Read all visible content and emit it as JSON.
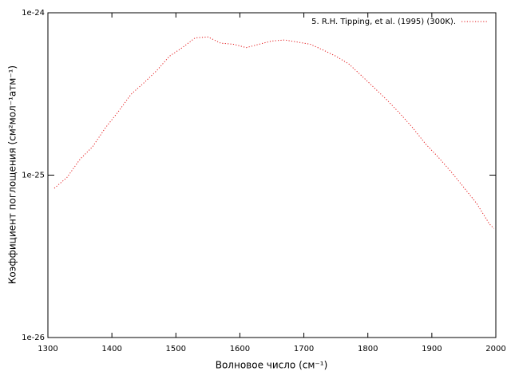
{
  "chart_data": {
    "type": "line",
    "xlabel": "Волновое число (см⁻¹)",
    "ylabel": "Коэффициент поглощения (см²мол⁻¹атм⁻¹)",
    "yscale": "log",
    "grid": false,
    "legend": "top right",
    "xlim": [
      1300,
      2000
    ],
    "xticks": [
      1300,
      1400,
      1500,
      1600,
      1700,
      1800,
      1900,
      2000
    ],
    "ylim": [
      1e-26,
      1e-24
    ],
    "yticks": [
      {
        "value": 1e-26,
        "label": "1e-26"
      },
      {
        "value": 1e-25,
        "label": "1e-25"
      },
      {
        "value": 1e-24,
        "label": "1e-24"
      }
    ],
    "x": [
      1310,
      1330,
      1350,
      1370,
      1390,
      1410,
      1430,
      1450,
      1470,
      1490,
      1510,
      1530,
      1550,
      1570,
      1590,
      1610,
      1630,
      1650,
      1670,
      1690,
      1710,
      1730,
      1750,
      1770,
      1790,
      1810,
      1830,
      1850,
      1870,
      1890,
      1910,
      1930,
      1950,
      1970,
      1990,
      1997
    ],
    "series": [
      {
        "name": "5. R.H. Tipping, et al. (1995) (300K).",
        "color": "#e41a1c",
        "values": [
          8.3e-26,
          9.7e-26,
          1.25e-25,
          1.5e-25,
          1.96e-25,
          2.46e-25,
          3.15e-25,
          3.7e-25,
          4.4e-25,
          5.4e-25,
          6.1e-25,
          7e-25,
          7.1e-25,
          6.5e-25,
          6.4e-25,
          6.1e-25,
          6.4e-25,
          6.7e-25,
          6.8e-25,
          6.6e-25,
          6.4e-25,
          5.9e-25,
          5.4e-25,
          4.85e-25,
          4.1e-25,
          3.45e-25,
          2.9e-25,
          2.4e-25,
          1.96e-25,
          1.56e-25,
          1.29e-25,
          1.05e-25,
          8.4e-26,
          6.7e-26,
          5e-26,
          4.7e-26
        ]
      }
    ]
  }
}
